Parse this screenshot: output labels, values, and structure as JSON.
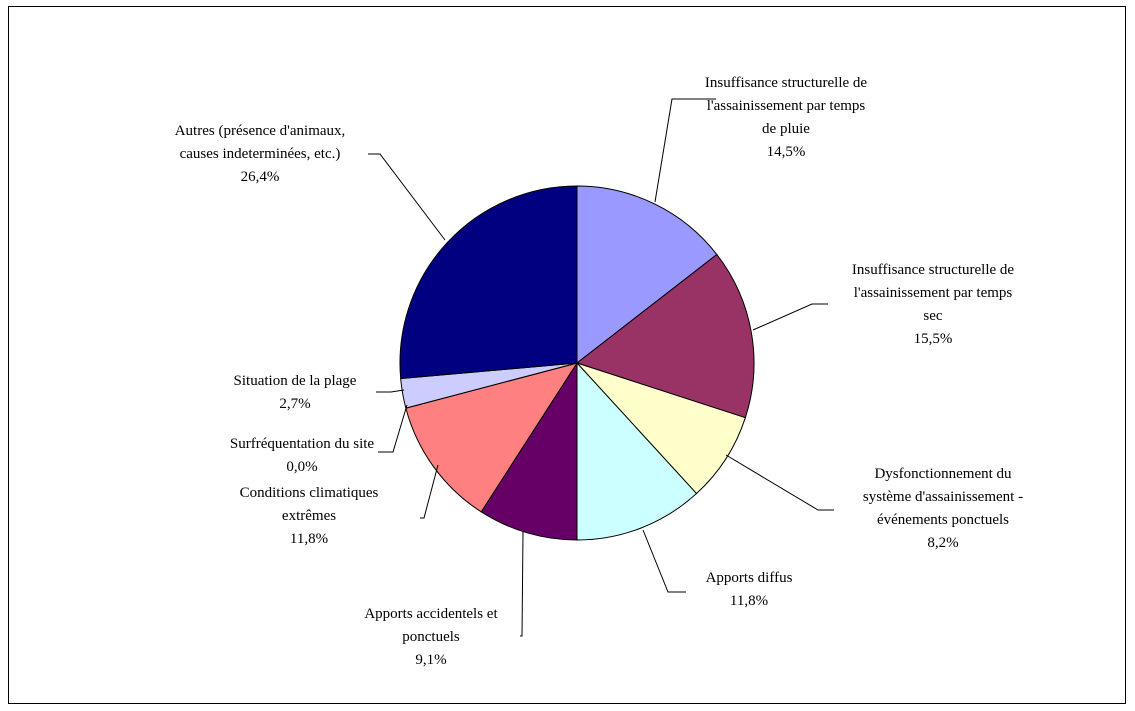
{
  "chart_data": {
    "type": "pie",
    "title": "",
    "series": [
      {
        "slices": [
          {
            "label": [
              "Insuffisance structurelle de",
              "l'assainissement par temps",
              "de pluie"
            ],
            "value": 14.5,
            "display": "14,5%",
            "color": "#9999FF"
          },
          {
            "label": [
              "Insuffisance structurelle de",
              "l'assainissement par temps",
              "sec"
            ],
            "value": 15.5,
            "display": "15,5%",
            "color": "#993366"
          },
          {
            "label": [
              "Dysfonctionnement du",
              "système d'assainissement -",
              "événements ponctuels"
            ],
            "value": 8.2,
            "display": "8,2%",
            "color": "#FFFFCC"
          },
          {
            "label": [
              "Apports diffus"
            ],
            "value": 11.8,
            "display": "11,8%",
            "color": "#CCFFFF"
          },
          {
            "label": [
              "Apports accidentels et",
              "ponctuels"
            ],
            "value": 9.1,
            "display": "9,1%",
            "color": "#660066"
          },
          {
            "label": [
              "Conditions climatiques",
              "extrêmes"
            ],
            "value": 11.8,
            "display": "11,8%",
            "color": "#FF8080"
          },
          {
            "label": [
              "Surfréquentation du site"
            ],
            "value": 0.0,
            "display": "0,0%",
            "color": "#0066CC"
          },
          {
            "label": [
              "Situation de la plage"
            ],
            "value": 2.7,
            "display": "2,7%",
            "color": "#CCCCFF"
          },
          {
            "label": [
              "Autres (présence d'animaux,",
              "causes indeterminées, etc.)"
            ],
            "value": 26.4,
            "display": "26,4%",
            "color": "#000080"
          }
        ]
      }
    ],
    "legend": "none",
    "start_angle_deg": 0,
    "direction": "clockwise"
  }
}
